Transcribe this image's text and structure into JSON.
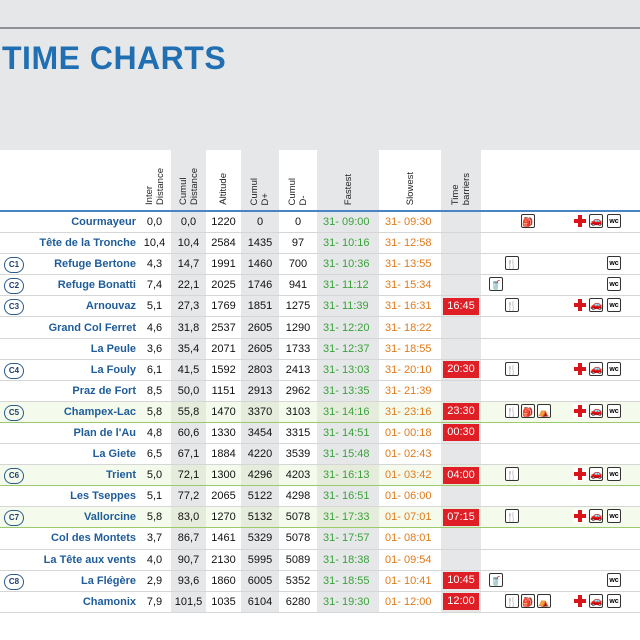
{
  "title": "TIME CHARTS",
  "columns": {
    "inter_distance": "Inter\nDistance",
    "cumul_distance": "Cumul\nDistance",
    "altitude": "Altitude",
    "cumul_dplus": "Cumul\nD+",
    "cumul_dminus": "Cumul\nD-",
    "fastest": "Fastest",
    "slowest": "Slowest",
    "time_barriers": "Time\nbarriers"
  },
  "rows": [
    {
      "cp": "",
      "name": "Courmayeur",
      "inter": "0,0",
      "cumul": "0,0",
      "alt": "1220",
      "dplus": "0",
      "dminus": "0",
      "fast": "31- 09:00",
      "slow": "31- 09:30",
      "barrier": "",
      "green": false,
      "icons": [
        "provisions",
        "first-aid",
        "car",
        "wc"
      ]
    },
    {
      "cp": "",
      "name": "Tête de la Tronche",
      "inter": "10,4",
      "cumul": "10,4",
      "alt": "2584",
      "dplus": "1435",
      "dminus": "97",
      "fast": "31- 10:16",
      "slow": "31- 12:58",
      "barrier": "",
      "green": false,
      "icons": []
    },
    {
      "cp": "C1",
      "name": "Refuge Bertone",
      "inter": "4,3",
      "cumul": "14,7",
      "alt": "1991",
      "dplus": "1460",
      "dminus": "700",
      "fast": "31- 10:36",
      "slow": "31- 13:55",
      "barrier": "",
      "green": false,
      "icons": [
        "food",
        "wc"
      ]
    },
    {
      "cp": "C2",
      "name": "Refuge Bonatti",
      "inter": "7,4",
      "cumul": "22,1",
      "alt": "2025",
      "dplus": "1746",
      "dminus": "941",
      "fast": "31- 11:12",
      "slow": "31- 15:34",
      "barrier": "",
      "green": false,
      "icons": [
        "drink",
        "wc"
      ]
    },
    {
      "cp": "C3",
      "name": "Arnouvaz",
      "inter": "5,1",
      "cumul": "27,3",
      "alt": "1769",
      "dplus": "1851",
      "dminus": "1275",
      "fast": "31- 11:39",
      "slow": "31- 16:31",
      "barrier": "16:45",
      "green": false,
      "icons": [
        "food",
        "first-aid",
        "car",
        "wc"
      ]
    },
    {
      "cp": "",
      "name": "Grand Col Ferret",
      "inter": "4,6",
      "cumul": "31,8",
      "alt": "2537",
      "dplus": "2605",
      "dminus": "1290",
      "fast": "31- 12:20",
      "slow": "31- 18:22",
      "barrier": "",
      "green": false,
      "icons": []
    },
    {
      "cp": "",
      "name": "La Peule",
      "inter": "3,6",
      "cumul": "35,4",
      "alt": "2071",
      "dplus": "2605",
      "dminus": "1733",
      "fast": "31- 12:37",
      "slow": "31- 18:55",
      "barrier": "",
      "green": false,
      "icons": []
    },
    {
      "cp": "C4",
      "name": "La Fouly",
      "inter": "6,1",
      "cumul": "41,5",
      "alt": "1592",
      "dplus": "2803",
      "dminus": "2413",
      "fast": "31- 13:03",
      "slow": "31- 20:10",
      "barrier": "20:30",
      "green": false,
      "icons": [
        "food",
        "first-aid",
        "car",
        "wc"
      ]
    },
    {
      "cp": "",
      "name": "Praz de Fort",
      "inter": "8,5",
      "cumul": "50,0",
      "alt": "1151",
      "dplus": "2913",
      "dminus": "2962",
      "fast": "31- 13:35",
      "slow": "31- 21:39",
      "barrier": "",
      "green": false,
      "icons": []
    },
    {
      "cp": "C5",
      "name": "Champex-Lac",
      "inter": "5,8",
      "cumul": "55,8",
      "alt": "1470",
      "dplus": "3370",
      "dminus": "3103",
      "fast": "31- 14:16",
      "slow": "31- 23:16",
      "barrier": "23:30",
      "green": true,
      "icons": [
        "food",
        "provisions",
        "bed",
        "first-aid",
        "car",
        "wc"
      ]
    },
    {
      "cp": "",
      "name": "Plan de l'Au",
      "inter": "4,8",
      "cumul": "60,6",
      "alt": "1330",
      "dplus": "3454",
      "dminus": "3315",
      "fast": "31- 14:51",
      "slow": "01- 00:18",
      "barrier": "00:30",
      "green": false,
      "icons": []
    },
    {
      "cp": "",
      "name": "La Giete",
      "inter": "6,5",
      "cumul": "67,1",
      "alt": "1884",
      "dplus": "4220",
      "dminus": "3539",
      "fast": "31- 15:48",
      "slow": "01- 02:43",
      "barrier": "",
      "green": false,
      "icons": []
    },
    {
      "cp": "C6",
      "name": "Trient",
      "inter": "5,0",
      "cumul": "72,1",
      "alt": "1300",
      "dplus": "4296",
      "dminus": "4203",
      "fast": "31- 16:13",
      "slow": "01- 03:42",
      "barrier": "04:00",
      "green": true,
      "icons": [
        "food",
        "first-aid",
        "car",
        "wc"
      ]
    },
    {
      "cp": "",
      "name": "Les Tseppes",
      "inter": "5,1",
      "cumul": "77,2",
      "alt": "2065",
      "dplus": "5122",
      "dminus": "4298",
      "fast": "31- 16:51",
      "slow": "01- 06:00",
      "barrier": "",
      "green": false,
      "icons": []
    },
    {
      "cp": "C7",
      "name": "Vallorcine",
      "inter": "5,8",
      "cumul": "83,0",
      "alt": "1270",
      "dplus": "5132",
      "dminus": "5078",
      "fast": "31- 17:33",
      "slow": "01- 07:01",
      "barrier": "07:15",
      "green": true,
      "icons": [
        "food",
        "first-aid",
        "car",
        "wc"
      ]
    },
    {
      "cp": "",
      "name": "Col des Montets",
      "inter": "3,7",
      "cumul": "86,7",
      "alt": "1461",
      "dplus": "5329",
      "dminus": "5078",
      "fast": "31- 17:57",
      "slow": "01- 08:01",
      "barrier": "",
      "green": false,
      "icons": []
    },
    {
      "cp": "",
      "name": "La Tête aux vents",
      "inter": "4,0",
      "cumul": "90,7",
      "alt": "2130",
      "dplus": "5995",
      "dminus": "5089",
      "fast": "31- 18:38",
      "slow": "01- 09:54",
      "barrier": "",
      "green": false,
      "icons": []
    },
    {
      "cp": "C8",
      "name": "La Flégère",
      "inter": "2,9",
      "cumul": "93,6",
      "alt": "1860",
      "dplus": "6005",
      "dminus": "5352",
      "fast": "31- 18:55",
      "slow": "01- 10:41",
      "barrier": "10:45",
      "green": false,
      "icons": [
        "drink",
        "wc"
      ]
    },
    {
      "cp": "",
      "name": "Chamonix",
      "inter": "7,9",
      "cumul": "101,5",
      "alt": "1035",
      "dplus": "6104",
      "dminus": "6280",
      "fast": "31- 19:30",
      "slow": "01- 12:00",
      "barrier": "12:00",
      "green": false,
      "icons": [
        "food",
        "provisions",
        "bed",
        "provisions",
        "first-aid",
        "car",
        "wc"
      ]
    }
  ]
}
